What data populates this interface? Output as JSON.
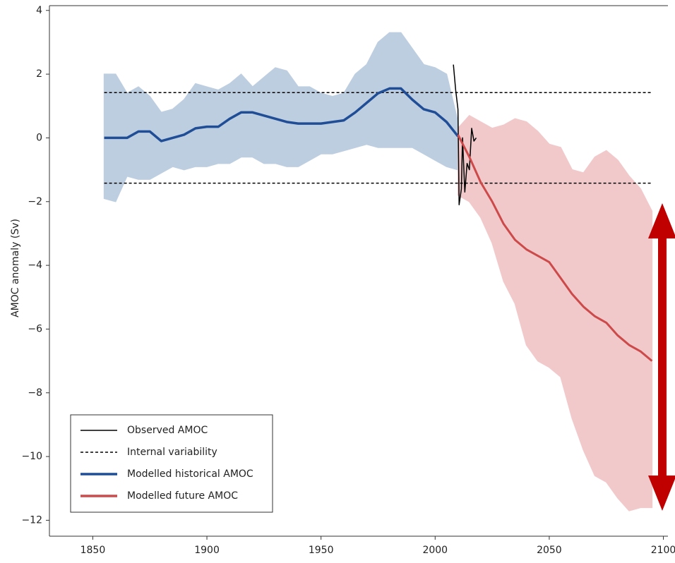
{
  "chart_data": {
    "type": "line",
    "ylabel": "AMOC anomaly (Sv)",
    "xlim": [
      1831,
      2102
    ],
    "ylim": [
      -12.5,
      4.15
    ],
    "xticks": [
      1850,
      1900,
      1950,
      2000,
      2050,
      2100
    ],
    "yticks": [
      {
        "value": -12,
        "label": "−12"
      },
      {
        "value": -10,
        "label": "−10"
      },
      {
        "value": -8,
        "label": "−8"
      },
      {
        "value": -6,
        "label": "−6"
      },
      {
        "value": -4,
        "label": "−4"
      },
      {
        "value": -2,
        "label": "−2"
      },
      0,
      2,
      4
    ],
    "legend": "bottom-left",
    "series": [
      {
        "name": "Observed AMOC",
        "type": "line",
        "color": "#000000",
        "width": 1.5,
        "x": [
          2008,
          2009,
          2010,
          2010.5,
          2011.5,
          2012,
          2013,
          2014,
          2015,
          2016,
          2017,
          2018
        ],
        "values": [
          2.3,
          1.5,
          0.9,
          -2.1,
          -1.6,
          0.0,
          -1.7,
          -0.8,
          -1.0,
          0.3,
          -0.1,
          0.0
        ]
      },
      {
        "name": "Internal variability",
        "type": "hline",
        "color": "#000000",
        "dashed": true,
        "values": [
          1.42,
          -1.42
        ]
      },
      {
        "name": "Modelled historical AMOC",
        "type": "line",
        "color": "#1f4e96",
        "width": 3.5,
        "band_color": "#b7c9de",
        "x": [
          1855,
          1860,
          1865,
          1870,
          1875,
          1880,
          1885,
          1890,
          1895,
          1900,
          1905,
          1910,
          1915,
          1920,
          1925,
          1930,
          1935,
          1940,
          1945,
          1950,
          1955,
          1960,
          1965,
          1970,
          1975,
          1980,
          1985,
          1990,
          1995,
          2000,
          2005,
          2010
        ],
        "values": [
          0.0,
          0.0,
          0.0,
          0.2,
          0.2,
          -0.1,
          0.0,
          0.1,
          0.3,
          0.35,
          0.35,
          0.6,
          0.8,
          0.8,
          0.7,
          0.6,
          0.5,
          0.45,
          0.45,
          0.45,
          0.5,
          0.55,
          0.8,
          1.1,
          1.4,
          1.55,
          1.55,
          1.2,
          0.9,
          0.8,
          0.5,
          0.05
        ],
        "upper": [
          2.0,
          2.0,
          1.4,
          1.6,
          1.3,
          0.8,
          0.9,
          1.2,
          1.7,
          1.6,
          1.5,
          1.7,
          2.0,
          1.6,
          1.9,
          2.2,
          2.1,
          1.6,
          1.6,
          1.4,
          1.3,
          1.4,
          2.0,
          2.3,
          3.0,
          3.3,
          3.3,
          2.8,
          2.3,
          2.2,
          2.0,
          0.5
        ],
        "lower": [
          -1.9,
          -2.0,
          -1.2,
          -1.3,
          -1.3,
          -1.1,
          -0.9,
          -1.0,
          -0.9,
          -0.9,
          -0.8,
          -0.8,
          -0.6,
          -0.6,
          -0.8,
          -0.8,
          -0.9,
          -0.9,
          -0.7,
          -0.5,
          -0.5,
          -0.4,
          -0.3,
          -0.2,
          -0.3,
          -0.3,
          -0.3,
          -0.3,
          -0.5,
          -0.7,
          -0.9,
          -1.0
        ]
      },
      {
        "name": "Modelled future AMOC",
        "type": "line",
        "color": "#cc4a4a",
        "width": 3,
        "band_color": "#f0c4c6",
        "x": [
          2010,
          2015,
          2020,
          2025,
          2030,
          2035,
          2040,
          2045,
          2050,
          2055,
          2060,
          2065,
          2070,
          2075,
          2080,
          2085,
          2090,
          2095
        ],
        "values": [
          0.1,
          -0.6,
          -1.4,
          -2.0,
          -2.7,
          -3.2,
          -3.5,
          -3.7,
          -3.9,
          -4.4,
          -4.9,
          -5.3,
          -5.6,
          -5.8,
          -6.2,
          -6.5,
          -6.7,
          -7.0
        ],
        "upper": [
          0.3,
          0.7,
          0.5,
          0.3,
          0.4,
          0.6,
          0.5,
          0.2,
          -0.2,
          -0.3,
          -1.0,
          -1.1,
          -0.6,
          -0.4,
          -0.7,
          -1.2,
          -1.6,
          -2.3
        ],
        "lower": [
          -1.8,
          -2.0,
          -2.5,
          -3.3,
          -4.5,
          -5.2,
          -6.5,
          -7.0,
          -7.2,
          -7.5,
          -8.8,
          -9.8,
          -10.6,
          -10.8,
          -11.3,
          -11.7,
          -11.6,
          -11.6
        ]
      }
    ]
  }
}
